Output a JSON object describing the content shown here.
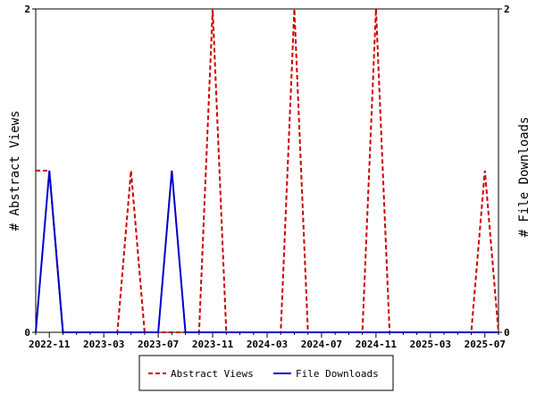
{
  "chart_data": {
    "type": "line",
    "ylabel_left": "# Abstract Views",
    "ylabel_right": "# File Downloads",
    "x_tick_labels": [
      "2022-11",
      "2023-03",
      "2023-07",
      "2023-11",
      "2024-03",
      "2024-07",
      "2024-11",
      "2025-03",
      "2025-07"
    ],
    "y_left_ticks": [
      "0",
      "2"
    ],
    "y_right_ticks": [
      "0",
      "2"
    ],
    "ylim_left": [
      0,
      2
    ],
    "ylim_right": [
      0,
      2
    ],
    "x_months": [
      "2022-10",
      "2022-11",
      "2022-12",
      "2023-01",
      "2023-02",
      "2023-03",
      "2023-04",
      "2023-05",
      "2023-06",
      "2023-07",
      "2023-08",
      "2023-09",
      "2023-10",
      "2023-11",
      "2023-12",
      "2024-01",
      "2024-02",
      "2024-03",
      "2024-04",
      "2024-05",
      "2024-06",
      "2024-07",
      "2024-08",
      "2024-09",
      "2024-10",
      "2024-11",
      "2024-12",
      "2025-01",
      "2025-02",
      "2025-03",
      "2025-04",
      "2025-05",
      "2025-06",
      "2025-07",
      "2025-08"
    ],
    "series": [
      {
        "name": "Abstract Views",
        "axis": "left",
        "color": "#cc0000",
        "dash": "dashed",
        "values": [
          1,
          1,
          0,
          0,
          0,
          0,
          0,
          1,
          0,
          0,
          0,
          0,
          0,
          2,
          0,
          0,
          0,
          0,
          0,
          2,
          0,
          0,
          0,
          0,
          0,
          2,
          0,
          0,
          0,
          0,
          0,
          0,
          0,
          1,
          0
        ]
      },
      {
        "name": "File Downloads",
        "axis": "right",
        "color": "#0000cc",
        "dash": "solid",
        "values": [
          0,
          1,
          0,
          0,
          0,
          0,
          0,
          0,
          0,
          0,
          1,
          0,
          0,
          0,
          0,
          0,
          0,
          0,
          0,
          0,
          0,
          0,
          0,
          0,
          0,
          0,
          0,
          0,
          0,
          0,
          0,
          0,
          0,
          0,
          0
        ]
      }
    ],
    "legend": {
      "placement": "bottom",
      "entries": [
        "Abstract Views",
        "File Downloads"
      ]
    },
    "grid": false
  }
}
